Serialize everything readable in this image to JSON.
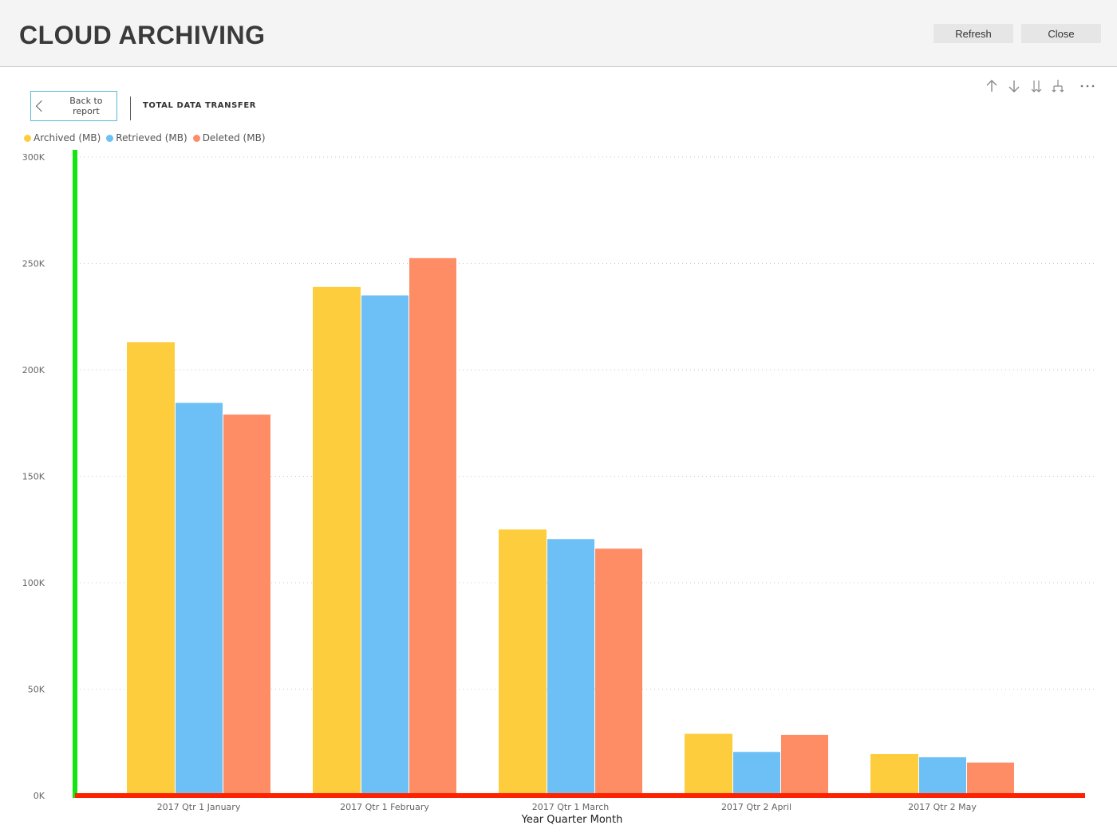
{
  "header": {
    "title": "CLOUD ARCHIVING",
    "refresh_label": "Refresh",
    "close_label": "Close"
  },
  "toolbar": {
    "back_label": "Back to report",
    "visual_title": "TOTAL DATA TRANSFER",
    "icons": [
      "drill-up-icon",
      "drill-down-icon",
      "expand-all-down-icon",
      "expand-hierarchy-icon",
      "more-options-icon"
    ]
  },
  "colors": {
    "archived": "#fecd3d",
    "retrieved": "#6cc0f5",
    "deleted": "#fe8d65",
    "y_axis_line": "#11e611",
    "x_axis_line": "#ff2200"
  },
  "chart_data": {
    "type": "bar",
    "title": "TOTAL DATA TRANSFER",
    "xlabel": "Year Quarter Month",
    "ylabel": "",
    "ylim": [
      0,
      300000
    ],
    "y_ticks": [
      {
        "value": 0,
        "label": "0K"
      },
      {
        "value": 50000,
        "label": "50K"
      },
      {
        "value": 100000,
        "label": "100K"
      },
      {
        "value": 150000,
        "label": "150K"
      },
      {
        "value": 200000,
        "label": "200K"
      },
      {
        "value": 250000,
        "label": "250K"
      },
      {
        "value": 300000,
        "label": "300K"
      }
    ],
    "grid": true,
    "legend": "top-left",
    "categories": [
      "2017 Qtr 1 January",
      "2017 Qtr 1 February",
      "2017 Qtr 1 March",
      "2017 Qtr 2 April",
      "2017 Qtr 2 May"
    ],
    "series": [
      {
        "name": "Archived (MB)",
        "color": "#fecd3d",
        "values": [
          213000,
          239000,
          125000,
          29000,
          19500
        ]
      },
      {
        "name": "Retrieved (MB)",
        "color": "#6cc0f5",
        "values": [
          184500,
          235000,
          120500,
          20500,
          18000
        ]
      },
      {
        "name": "Deleted (MB)",
        "color": "#fe8d65",
        "values": [
          179000,
          252500,
          116000,
          28500,
          15500
        ]
      }
    ]
  }
}
